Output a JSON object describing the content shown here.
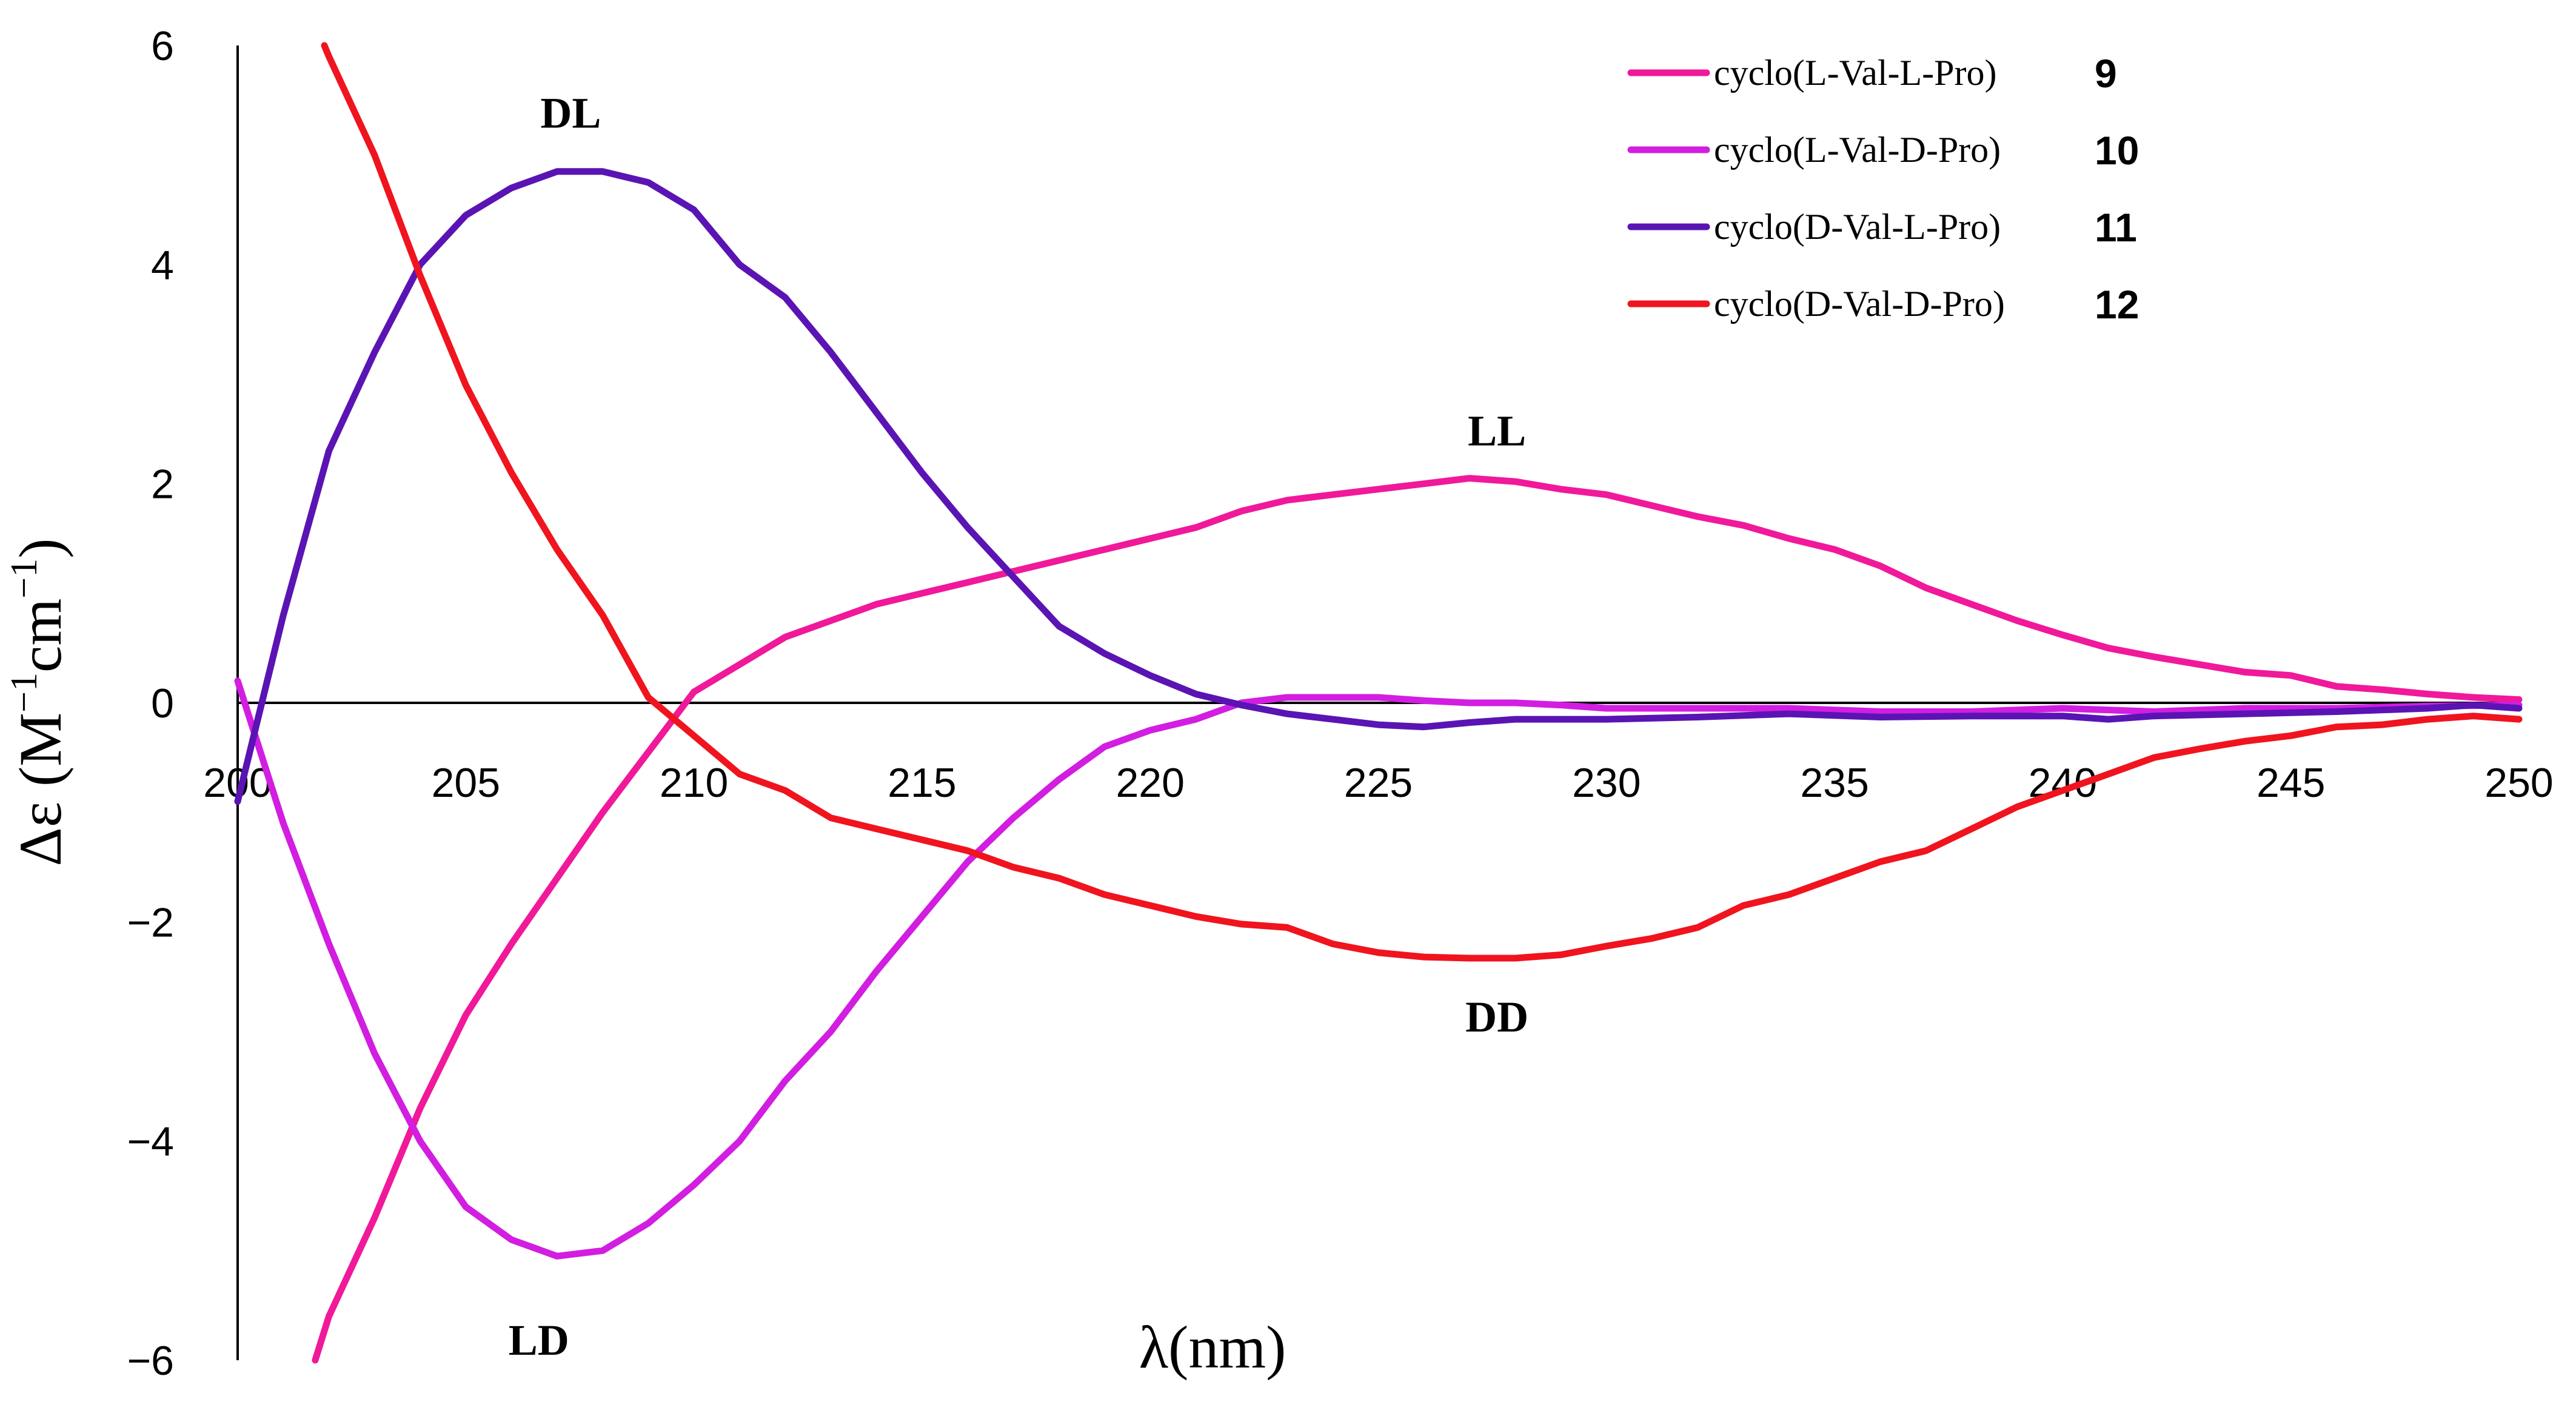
{
  "chart_data": {
    "type": "line",
    "title": "",
    "xlabel": "λ(nm)",
    "ylabel_parts": {
      "main": "Δε (M",
      "sup1": "−1",
      "mid": "cm",
      "sup2": "−1",
      "end": ")"
    },
    "xlim": [
      200,
      250
    ],
    "ylim": [
      -6,
      6
    ],
    "x_ticks": [
      "200",
      "205",
      "210",
      "215",
      "220",
      "225",
      "230",
      "235",
      "240",
      "245",
      "250"
    ],
    "y_ticks": [
      "6",
      "4",
      "2",
      "0",
      "−2",
      "−4",
      "−6"
    ],
    "grid": false,
    "legend_position": "top-right",
    "series": [
      {
        "name": "cyclo(L-Val-L-Pro)",
        "number": "9",
        "color": "#f0199a",
        "points": [
          [
            201.7,
            -6.0
          ],
          [
            202,
            -5.6
          ],
          [
            203,
            -4.7
          ],
          [
            204,
            -3.7
          ],
          [
            205,
            -2.85
          ],
          [
            206,
            -2.2
          ],
          [
            207,
            -1.6
          ],
          [
            208,
            -1.0
          ],
          [
            209,
            -0.45
          ],
          [
            210,
            0.1
          ],
          [
            211,
            0.35
          ],
          [
            212,
            0.6
          ],
          [
            213,
            0.75
          ],
          [
            214,
            0.9
          ],
          [
            215,
            1.0
          ],
          [
            216,
            1.1
          ],
          [
            217,
            1.2
          ],
          [
            218,
            1.3
          ],
          [
            219,
            1.4
          ],
          [
            220,
            1.5
          ],
          [
            221,
            1.6
          ],
          [
            222,
            1.75
          ],
          [
            223,
            1.85
          ],
          [
            224,
            1.9
          ],
          [
            225,
            1.95
          ],
          [
            226,
            2.0
          ],
          [
            227,
            2.05
          ],
          [
            228,
            2.02
          ],
          [
            229,
            1.95
          ],
          [
            230,
            1.9
          ],
          [
            231,
            1.8
          ],
          [
            232,
            1.7
          ],
          [
            233,
            1.62
          ],
          [
            234,
            1.5
          ],
          [
            235,
            1.4
          ],
          [
            236,
            1.25
          ],
          [
            237,
            1.05
          ],
          [
            238,
            0.9
          ],
          [
            239,
            0.75
          ],
          [
            240,
            0.62
          ],
          [
            241,
            0.5
          ],
          [
            242,
            0.42
          ],
          [
            243,
            0.35
          ],
          [
            244,
            0.28
          ],
          [
            245,
            0.25
          ],
          [
            246,
            0.15
          ],
          [
            247,
            0.12
          ],
          [
            248,
            0.08
          ],
          [
            249,
            0.05
          ],
          [
            250,
            0.03
          ]
        ]
      },
      {
        "name": "cyclo(L-Val-D-Pro)",
        "number": "10",
        "color": "#d21ee0",
        "points": [
          [
            200,
            0.2
          ],
          [
            201,
            -1.1
          ],
          [
            202,
            -2.2
          ],
          [
            203,
            -3.2
          ],
          [
            204,
            -4.0
          ],
          [
            205,
            -4.6
          ],
          [
            206,
            -4.9
          ],
          [
            207,
            -5.05
          ],
          [
            208,
            -5.0
          ],
          [
            209,
            -4.75
          ],
          [
            210,
            -4.4
          ],
          [
            211,
            -4.0
          ],
          [
            212,
            -3.45
          ],
          [
            213,
            -3.0
          ],
          [
            214,
            -2.45
          ],
          [
            215,
            -1.95
          ],
          [
            216,
            -1.45
          ],
          [
            217,
            -1.05
          ],
          [
            218,
            -0.7
          ],
          [
            219,
            -0.4
          ],
          [
            220,
            -0.25
          ],
          [
            221,
            -0.15
          ],
          [
            222,
            0.0
          ],
          [
            223,
            0.05
          ],
          [
            224,
            0.05
          ],
          [
            225,
            0.05
          ],
          [
            226,
            0.02
          ],
          [
            227,
            0.0
          ],
          [
            228,
            0.0
          ],
          [
            229,
            -0.02
          ],
          [
            230,
            -0.05
          ],
          [
            232,
            -0.05
          ],
          [
            234,
            -0.05
          ],
          [
            236,
            -0.08
          ],
          [
            238,
            -0.08
          ],
          [
            240,
            -0.05
          ],
          [
            242,
            -0.08
          ],
          [
            244,
            -0.05
          ],
          [
            246,
            -0.05
          ],
          [
            248,
            -0.03
          ],
          [
            250,
            -0.02
          ]
        ]
      },
      {
        "name": "cyclo(D-Val-L-Pro)",
        "number": "11",
        "color": "#5a14b4",
        "points": [
          [
            200,
            -0.9
          ],
          [
            201,
            0.8
          ],
          [
            202,
            2.3
          ],
          [
            203,
            3.2
          ],
          [
            204,
            4.0
          ],
          [
            205,
            4.45
          ],
          [
            206,
            4.7
          ],
          [
            207,
            4.85
          ],
          [
            208,
            4.85
          ],
          [
            209,
            4.75
          ],
          [
            210,
            4.5
          ],
          [
            211,
            4.0
          ],
          [
            212,
            3.7
          ],
          [
            213,
            3.2
          ],
          [
            214,
            2.65
          ],
          [
            215,
            2.1
          ],
          [
            216,
            1.6
          ],
          [
            217,
            1.15
          ],
          [
            218,
            0.7
          ],
          [
            219,
            0.45
          ],
          [
            220,
            0.25
          ],
          [
            221,
            0.08
          ],
          [
            222,
            -0.02
          ],
          [
            223,
            -0.1
          ],
          [
            224,
            -0.15
          ],
          [
            225,
            -0.2
          ],
          [
            226,
            -0.22
          ],
          [
            227,
            -0.18
          ],
          [
            228,
            -0.15
          ],
          [
            229,
            -0.15
          ],
          [
            230,
            -0.15
          ],
          [
            232,
            -0.13
          ],
          [
            234,
            -0.1
          ],
          [
            236,
            -0.13
          ],
          [
            238,
            -0.12
          ],
          [
            240,
            -0.12
          ],
          [
            241,
            -0.15
          ],
          [
            242,
            -0.12
          ],
          [
            244,
            -0.1
          ],
          [
            246,
            -0.08
          ],
          [
            248,
            -0.05
          ],
          [
            249,
            -0.02
          ],
          [
            250,
            -0.05
          ]
        ]
      },
      {
        "name": "cyclo(D-Val-D-Pro)",
        "number": "12",
        "color": "#f0141e",
        "points": [
          [
            201.9,
            6.0
          ],
          [
            202,
            5.9
          ],
          [
            203,
            5.0
          ],
          [
            204,
            3.9
          ],
          [
            205,
            2.9
          ],
          [
            206,
            2.1
          ],
          [
            207,
            1.4
          ],
          [
            208,
            0.8
          ],
          [
            209,
            0.05
          ],
          [
            210,
            -0.3
          ],
          [
            211,
            -0.65
          ],
          [
            212,
            -0.8
          ],
          [
            213,
            -1.05
          ],
          [
            214,
            -1.15
          ],
          [
            215,
            -1.25
          ],
          [
            216,
            -1.35
          ],
          [
            217,
            -1.5
          ],
          [
            218,
            -1.6
          ],
          [
            219,
            -1.75
          ],
          [
            220,
            -1.85
          ],
          [
            221,
            -1.95
          ],
          [
            222,
            -2.02
          ],
          [
            223,
            -2.05
          ],
          [
            224,
            -2.2
          ],
          [
            225,
            -2.28
          ],
          [
            226,
            -2.32
          ],
          [
            227,
            -2.33
          ],
          [
            228,
            -2.33
          ],
          [
            229,
            -2.3
          ],
          [
            230,
            -2.22
          ],
          [
            231,
            -2.15
          ],
          [
            232,
            -2.05
          ],
          [
            233,
            -1.85
          ],
          [
            234,
            -1.75
          ],
          [
            235,
            -1.6
          ],
          [
            236,
            -1.45
          ],
          [
            237,
            -1.35
          ],
          [
            238,
            -1.15
          ],
          [
            239,
            -0.95
          ],
          [
            240,
            -0.8
          ],
          [
            241,
            -0.65
          ],
          [
            242,
            -0.5
          ],
          [
            243,
            -0.42
          ],
          [
            244,
            -0.35
          ],
          [
            245,
            -0.3
          ],
          [
            246,
            -0.22
          ],
          [
            247,
            -0.2
          ],
          [
            248,
            -0.15
          ],
          [
            249,
            -0.12
          ],
          [
            250,
            -0.15
          ]
        ]
      }
    ],
    "annotations": [
      {
        "text": "DL",
        "x": 207.3,
        "y": 5.25
      },
      {
        "text": "LL",
        "x": 227.6,
        "y": 2.35
      },
      {
        "text": "DD",
        "x": 227.6,
        "y": -3.0
      },
      {
        "text": "LD",
        "x": 206.6,
        "y": -5.95
      }
    ]
  }
}
